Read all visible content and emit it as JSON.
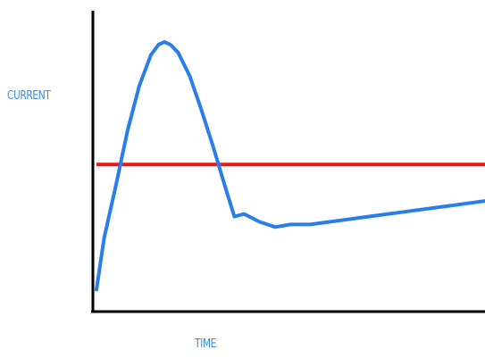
{
  "chart_data": {
    "type": "line",
    "title": "",
    "xlabel": "TIME",
    "ylabel": "CURRENT",
    "xlim": [
      0,
      100
    ],
    "ylim": [
      0,
      100
    ],
    "grid": false,
    "tick_labels": false,
    "series": [
      {
        "color": "#2a7ee8",
        "x": [
          0,
          2,
          5,
          8,
          11,
          14,
          16,
          17.5,
          19,
          21,
          24,
          27,
          30,
          33,
          35.5,
          38,
          42,
          46,
          50,
          55,
          60,
          70,
          80,
          90,
          100
        ],
        "y": [
          5,
          25,
          45,
          66,
          83,
          95,
          99,
          100,
          99,
          96,
          87,
          74,
          60,
          45,
          33,
          34,
          31,
          29,
          30,
          30,
          31,
          33,
          35,
          37,
          39
        ]
      }
    ],
    "reference_lines": [
      {
        "orientation": "horizontal",
        "value": 53,
        "color": "#e81818"
      }
    ]
  }
}
